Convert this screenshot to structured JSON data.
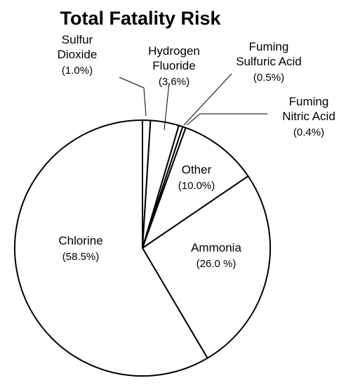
{
  "chart_data": {
    "type": "pie",
    "title": "Total Fatality Risk",
    "slices": [
      {
        "name": "Sulfur Dioxide",
        "lines": [
          "Sulfur",
          "Dioxide"
        ],
        "value": 1.0,
        "pct_text": "(1.0%)"
      },
      {
        "name": "Hydrogen Fluoride",
        "lines": [
          "Hydrogen",
          "Fluoride"
        ],
        "value": 3.6,
        "pct_text": "(3.6%)"
      },
      {
        "name": "Fuming Sulfuric Acid",
        "lines": [
          "Fuming",
          "Sulfuric Acid"
        ],
        "value": 0.5,
        "pct_text": "(0.5%)"
      },
      {
        "name": "Fuming Nitric Acid",
        "lines": [
          "Fuming",
          "Nitric Acid"
        ],
        "value": 0.4,
        "pct_text": "(0.4%)"
      },
      {
        "name": "Other",
        "lines": [
          "Other"
        ],
        "value": 10.0,
        "pct_text": "(10.0%)"
      },
      {
        "name": "Ammonia",
        "lines": [
          "Ammonia"
        ],
        "value": 26.0,
        "pct_text": "(26.0 %)"
      },
      {
        "name": "Chlorine",
        "lines": [
          "Chlorine"
        ],
        "value": 58.5,
        "pct_text": "(58.5%)"
      }
    ],
    "legend": "none",
    "slice_fill": "#ffffff",
    "stroke_color": "#000000"
  }
}
